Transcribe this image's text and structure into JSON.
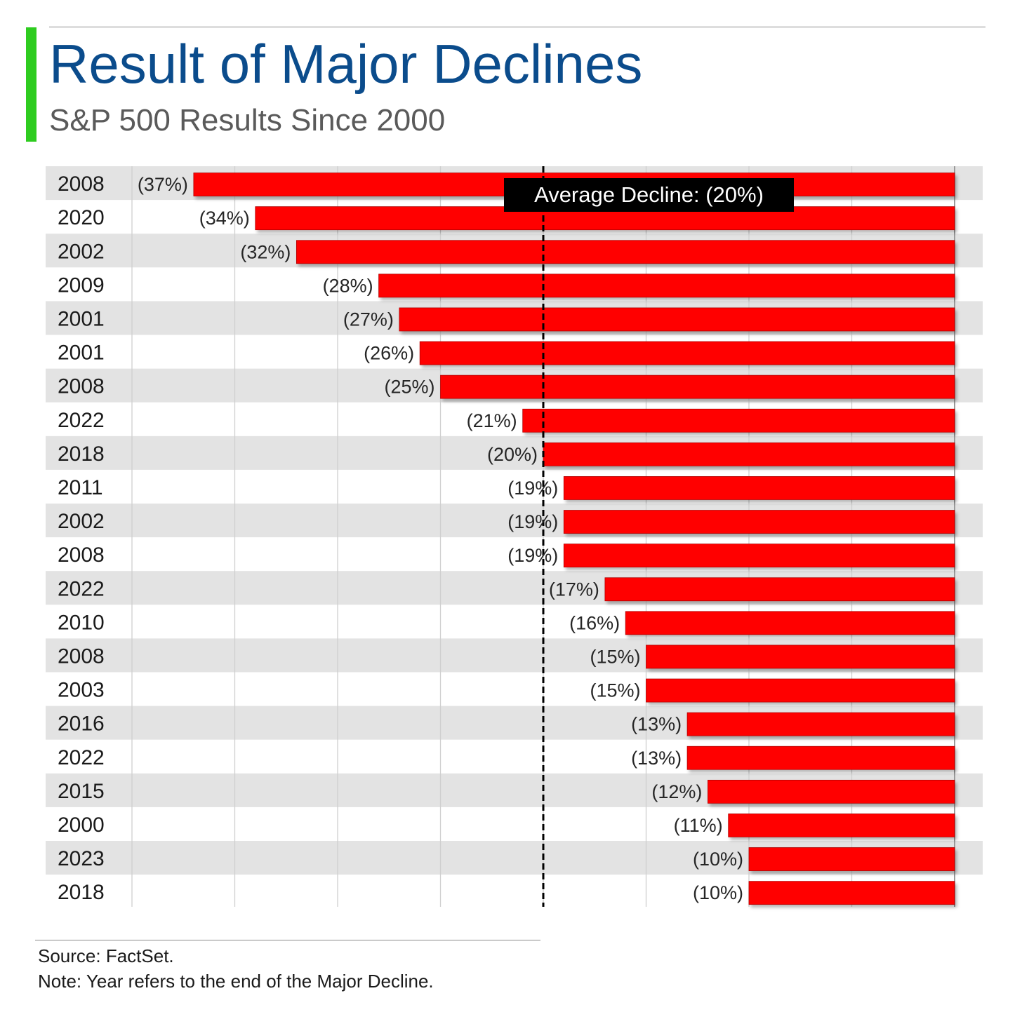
{
  "header": {
    "title": "Result of Major Declines",
    "subtitle": "S&P 500 Results Since 2000"
  },
  "footer": {
    "source": "Source: FactSet.",
    "note": "Note: Year refers to the end of the Major Decline."
  },
  "colors": {
    "title": "#0b4c8c",
    "subtitle": "#5a5a5a",
    "accent": "#2ecc1f",
    "bar": "#ff0000",
    "band": "#e3e3e3",
    "gridline": "#cfcfcf",
    "label": "#262626",
    "annotation_bg": "#000000",
    "annotation_text": "#ffffff"
  },
  "chart_data": {
    "type": "bar",
    "orientation": "horizontal",
    "categories": [
      "2008",
      "2020",
      "2002",
      "2009",
      "2001",
      "2001",
      "2008",
      "2022",
      "2018",
      "2011",
      "2002",
      "2008",
      "2022",
      "2010",
      "2008",
      "2003",
      "2016",
      "2022",
      "2015",
      "2000",
      "2023",
      "2018"
    ],
    "values": [
      -37,
      -34,
      -32,
      -28,
      -27,
      -26,
      -25,
      -21,
      -20,
      -19,
      -19,
      -19,
      -17,
      -16,
      -15,
      -15,
      -13,
      -13,
      -12,
      -11,
      -10,
      -10
    ],
    "value_labels": [
      "(37%)",
      "(34%)",
      "(32%)",
      "(28%)",
      "(27%)",
      "(26%)",
      "(25%)",
      "(21%)",
      "(20%)",
      "(19%)",
      "(19%)",
      "(19%)",
      "(17%)",
      "(16%)",
      "(15%)",
      "(15%)",
      "(13%)",
      "(13%)",
      "(12%)",
      "(11%)",
      "(10%)",
      "(10%)"
    ],
    "reference_line": {
      "value": -20,
      "label": "Average Decline: (20%)"
    },
    "xlim": [
      -40,
      0
    ],
    "grid": true,
    "alternating_row_bands": true
  }
}
